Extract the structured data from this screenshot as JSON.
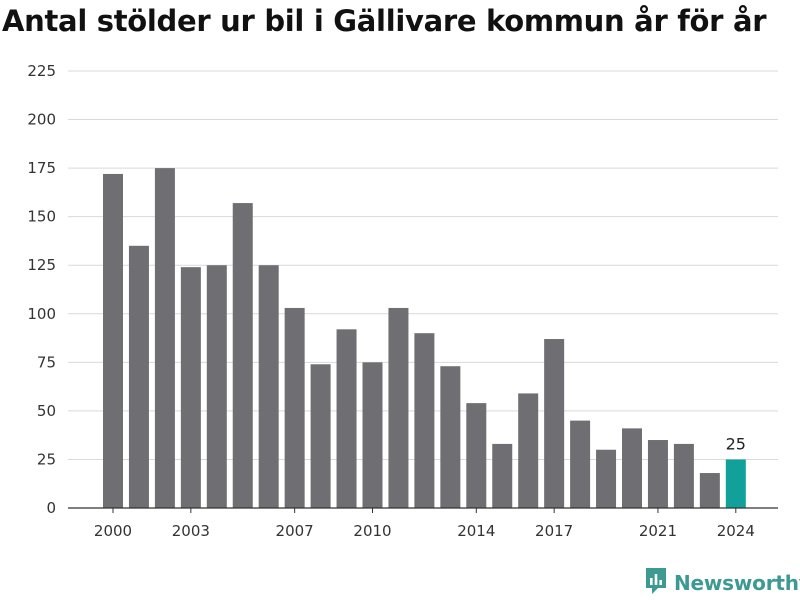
{
  "colors": {
    "bar": "#6f6e73",
    "highlight": "#11a19a",
    "grid": "#d9d9d9",
    "axis": "#333333",
    "brand": "#3d9a92"
  },
  "brand": {
    "name": "Newsworthy",
    "icon": "newsworthy-logo-icon"
  },
  "chart_data": {
    "type": "bar",
    "title": "Antal stölder ur bil i Gällivare kommun år för år",
    "xlabel": "",
    "ylabel": "",
    "categories": [
      "2000",
      "2001",
      "2002",
      "2003",
      "2004",
      "2005",
      "2006",
      "2007",
      "2008",
      "2009",
      "2010",
      "2011",
      "2012",
      "2013",
      "2014",
      "2015",
      "2016",
      "2017",
      "2018",
      "2019",
      "2020",
      "2021",
      "2022",
      "2023",
      "2024"
    ],
    "values": [
      172,
      135,
      175,
      124,
      125,
      157,
      125,
      103,
      74,
      92,
      75,
      103,
      90,
      73,
      54,
      33,
      59,
      87,
      45,
      30,
      41,
      35,
      33,
      18,
      25
    ],
    "x_tick_labels": [
      "2000",
      "2003",
      "2007",
      "2010",
      "2014",
      "2017",
      "2021",
      "2024"
    ],
    "y_ticks": [
      "0",
      "25",
      "50",
      "75",
      "100",
      "125",
      "150",
      "175",
      "200",
      "225"
    ],
    "ylim": [
      0,
      225
    ],
    "grid": true,
    "highlight_category": "2024",
    "data_labels": [
      {
        "category": "2024",
        "text": "25"
      }
    ]
  }
}
